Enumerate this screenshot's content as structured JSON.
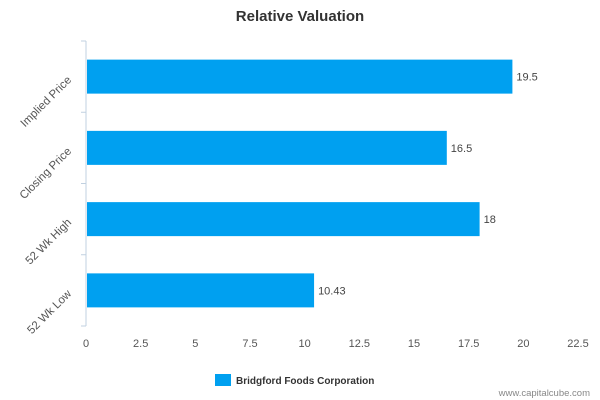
{
  "chart_data": {
    "type": "bar",
    "orientation": "horizontal",
    "title": "Relative Valuation",
    "categories": [
      "Implied Price",
      "Closing Price",
      "52 Wk High",
      "52 Wk Low"
    ],
    "series": [
      {
        "name": "Bridgford Foods Corporation",
        "values": [
          19.5,
          16.5,
          18,
          10.43
        ],
        "color": "#00a0f0"
      }
    ],
    "data_labels": [
      "19.5",
      "16.5",
      "18",
      "10.43"
    ],
    "xlim": [
      0,
      22.5
    ],
    "xticks": [
      "0",
      "2.5",
      "5",
      "7.5",
      "10",
      "12.5",
      "15",
      "17.5",
      "20",
      "22.5"
    ],
    "grid": false,
    "legend_position": "bottom-center"
  },
  "credit": "www.capitalcube.com"
}
